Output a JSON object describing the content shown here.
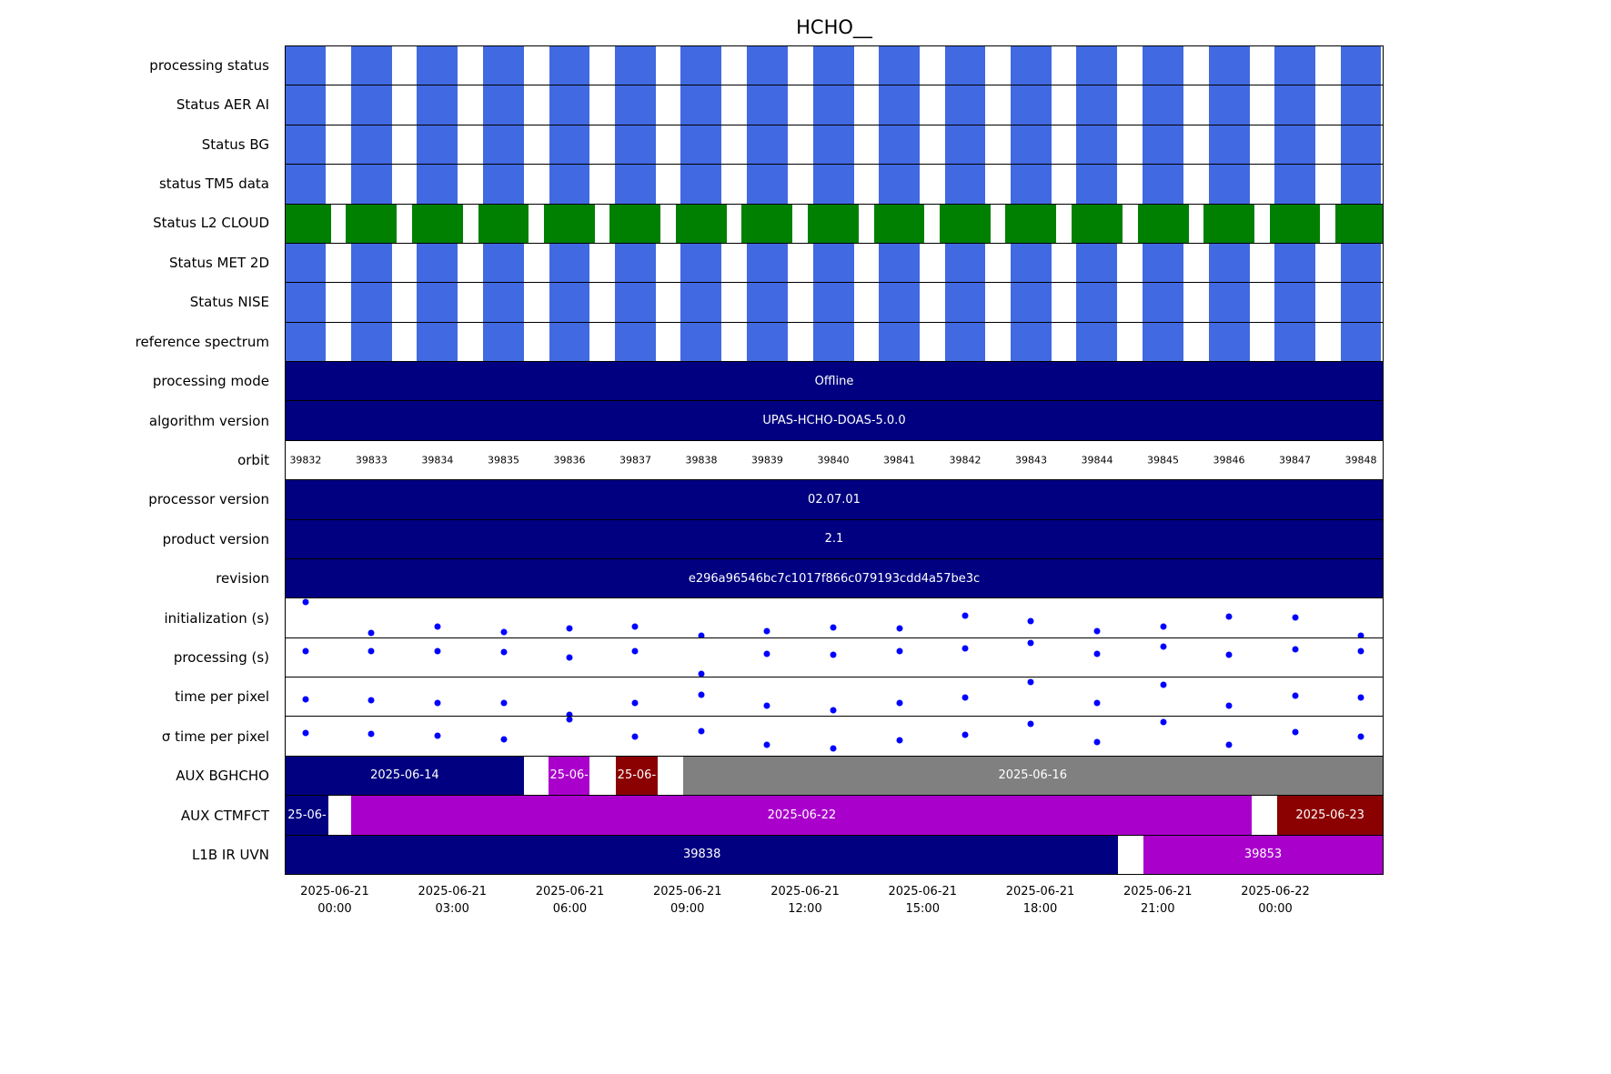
{
  "title": "HCHO__",
  "colors": {
    "blue": "#4169E1",
    "green": "#008000",
    "navy": "#000080",
    "magenta": "#AA00CC",
    "darkred": "#8B0000",
    "gray": "#808080",
    "dot": "#0000FF"
  },
  "orbits": [
    "39832",
    "39833",
    "39834",
    "39835",
    "39836",
    "39837",
    "39838",
    "39839",
    "39840",
    "39841",
    "39842",
    "39843",
    "39844",
    "39845",
    "39846",
    "39847",
    "39848"
  ],
  "chart_data": {
    "type": "timeline",
    "title": "HCHO__",
    "orbit_centers": [
      0.0182,
      0.0783,
      0.1384,
      0.1986,
      0.2587,
      0.3188,
      0.3789,
      0.439,
      0.4992,
      0.5593,
      0.6194,
      0.6795,
      0.7396,
      0.7998,
      0.8599,
      0.92,
      0.9801
    ],
    "x_ticks": [
      {
        "date": "2025-06-21",
        "time": "00:00",
        "t": 0.0455
      },
      {
        "date": "2025-06-21",
        "time": "03:00",
        "t": 0.1525
      },
      {
        "date": "2025-06-21",
        "time": "06:00",
        "t": 0.2595
      },
      {
        "date": "2025-06-21",
        "time": "09:00",
        "t": 0.3665
      },
      {
        "date": "2025-06-21",
        "time": "12:00",
        "t": 0.4735
      },
      {
        "date": "2025-06-21",
        "time": "15:00",
        "t": 0.5805
      },
      {
        "date": "2025-06-21",
        "time": "18:00",
        "t": 0.6875
      },
      {
        "date": "2025-06-21",
        "time": "21:00",
        "t": 0.7945
      },
      {
        "date": "2025-06-22",
        "time": "00:00",
        "t": 0.9015
      }
    ],
    "rows": [
      {
        "label": "processing status",
        "type": "stripes",
        "color_key": "blue",
        "block_w": 0.0373
      },
      {
        "label": "Status AER AI",
        "type": "stripes",
        "color_key": "blue",
        "block_w": 0.0373
      },
      {
        "label": "Status BG",
        "type": "stripes",
        "color_key": "blue",
        "block_w": 0.0373
      },
      {
        "label": "status TM5 data",
        "type": "stripes",
        "color_key": "blue",
        "block_w": 0.0373
      },
      {
        "label": "Status L2  CLOUD",
        "type": "stripes",
        "color_key": "green",
        "block_w": 0.0464
      },
      {
        "label": "Status MET 2D",
        "type": "stripes",
        "color_key": "blue",
        "block_w": 0.0373
      },
      {
        "label": "Status NISE",
        "type": "stripes",
        "color_key": "blue",
        "block_w": 0.0373
      },
      {
        "label": "reference spectrum",
        "type": "stripes",
        "color_key": "blue",
        "block_w": 0.0373
      },
      {
        "label": "processing mode",
        "type": "solid",
        "color_key": "navy",
        "text": "Offline"
      },
      {
        "label": "algorithm version",
        "type": "solid",
        "color_key": "navy",
        "text": "UPAS-HCHO-DOAS-5.0.0"
      },
      {
        "label": "orbit",
        "type": "orbit_labels"
      },
      {
        "label": "processor version",
        "type": "solid",
        "color_key": "navy",
        "text": "02.07.01"
      },
      {
        "label": "product version",
        "type": "solid",
        "color_key": "navy",
        "text": "2.1"
      },
      {
        "label": "revision",
        "type": "solid",
        "color_key": "navy",
        "text": "e296a96546bc7c1017f866c079193cdd4a57be3c"
      },
      {
        "label": "initialization (s)",
        "type": "scatter",
        "points": [
          {
            "i": 0,
            "y": 0.1
          },
          {
            "i": 1,
            "y": 0.9
          },
          {
            "i": 2,
            "y": 0.72
          },
          {
            "i": 3,
            "y": 0.86
          },
          {
            "i": 4,
            "y": 0.77
          },
          {
            "i": 5,
            "y": 0.72
          },
          {
            "i": 6,
            "y": 0.95
          },
          {
            "i": 7,
            "y": 0.84
          },
          {
            "i": 8,
            "y": 0.74
          },
          {
            "i": 9,
            "y": 0.77
          },
          {
            "i": 10,
            "y": 0.44
          },
          {
            "i": 11,
            "y": 0.58
          },
          {
            "i": 12,
            "y": 0.84
          },
          {
            "i": 13,
            "y": 0.72
          },
          {
            "i": 14,
            "y": 0.47
          },
          {
            "i": 15,
            "y": 0.49
          },
          {
            "i": 16,
            "y": 0.97
          }
        ]
      },
      {
        "label": "processing (s)",
        "type": "scatter",
        "points": [
          {
            "i": 0,
            "y": 0.33
          },
          {
            "i": 1,
            "y": 0.33
          },
          {
            "i": 2,
            "y": 0.35
          },
          {
            "i": 3,
            "y": 0.37
          },
          {
            "i": 4,
            "y": 0.51
          },
          {
            "i": 5,
            "y": 0.35
          },
          {
            "i": 6,
            "y": 0.93
          },
          {
            "i": 7,
            "y": 0.4
          },
          {
            "i": 8,
            "y": 0.44
          },
          {
            "i": 9,
            "y": 0.35
          },
          {
            "i": 10,
            "y": 0.28
          },
          {
            "i": 11,
            "y": 0.12
          },
          {
            "i": 12,
            "y": 0.4
          },
          {
            "i": 13,
            "y": 0.21
          },
          {
            "i": 14,
            "y": 0.44
          },
          {
            "i": 15,
            "y": 0.3
          },
          {
            "i": 16,
            "y": 0.33
          }
        ]
      },
      {
        "label": "time per pixel",
        "type": "scatter",
        "points": [
          {
            "i": 0,
            "y": 0.56
          },
          {
            "i": 1,
            "y": 0.6
          },
          {
            "i": 2,
            "y": 0.65
          },
          {
            "i": 3,
            "y": 0.67
          },
          {
            "i": 4,
            "y": 0.97
          },
          {
            "i": 5,
            "y": 0.67
          },
          {
            "i": 6,
            "y": 0.44
          },
          {
            "i": 7,
            "y": 0.72
          },
          {
            "i": 8,
            "y": 0.86
          },
          {
            "i": 9,
            "y": 0.67
          },
          {
            "i": 10,
            "y": 0.51
          },
          {
            "i": 11,
            "y": 0.12
          },
          {
            "i": 12,
            "y": 0.67
          },
          {
            "i": 13,
            "y": 0.19
          },
          {
            "i": 14,
            "y": 0.74
          },
          {
            "i": 15,
            "y": 0.47
          },
          {
            "i": 16,
            "y": 0.53
          }
        ]
      },
      {
        "label": "σ time per pixel",
        "type": "scatter",
        "points": [
          {
            "i": 0,
            "y": 0.42
          },
          {
            "i": 1,
            "y": 0.44
          },
          {
            "i": 2,
            "y": 0.49
          },
          {
            "i": 3,
            "y": 0.58
          },
          {
            "i": 4,
            "y": 0.07
          },
          {
            "i": 5,
            "y": 0.51
          },
          {
            "i": 6,
            "y": 0.37
          },
          {
            "i": 7,
            "y": 0.72
          },
          {
            "i": 8,
            "y": 0.81
          },
          {
            "i": 9,
            "y": 0.6
          },
          {
            "i": 10,
            "y": 0.47
          },
          {
            "i": 11,
            "y": 0.19
          },
          {
            "i": 12,
            "y": 0.65
          },
          {
            "i": 13,
            "y": 0.14
          },
          {
            "i": 14,
            "y": 0.72
          },
          {
            "i": 15,
            "y": 0.4
          },
          {
            "i": 16,
            "y": 0.51
          }
        ]
      },
      {
        "label": "AUX BGHCHO",
        "type": "segments",
        "segments": [
          {
            "start": 0,
            "end": 0.217,
            "color_key": "navy",
            "text": "2025-06-14"
          },
          {
            "start": 0.24,
            "end": 0.277,
            "color_key": "magenta",
            "text": "25-06-"
          },
          {
            "start": 0.301,
            "end": 0.339,
            "color_key": "darkred",
            "text": "25-06-"
          },
          {
            "start": 0.362,
            "end": 1,
            "color_key": "gray",
            "text": "2025-06-16"
          }
        ]
      },
      {
        "label": "AUX CTMFCT",
        "type": "segments",
        "segments": [
          {
            "start": 0,
            "end": 0.039,
            "color_key": "navy",
            "text": "25-06-"
          },
          {
            "start": 0.06,
            "end": 0.881,
            "color_key": "magenta",
            "text": "2025-06-22"
          },
          {
            "start": 0.904,
            "end": 1,
            "color_key": "darkred",
            "text": "2025-06-23"
          }
        ]
      },
      {
        "label": "L1B IR UVN",
        "type": "segments",
        "segments": [
          {
            "start": 0,
            "end": 0.759,
            "color_key": "navy",
            "text": "39838"
          },
          {
            "start": 0.782,
            "end": 1,
            "color_key": "magenta",
            "text": "39853"
          }
        ]
      }
    ]
  }
}
